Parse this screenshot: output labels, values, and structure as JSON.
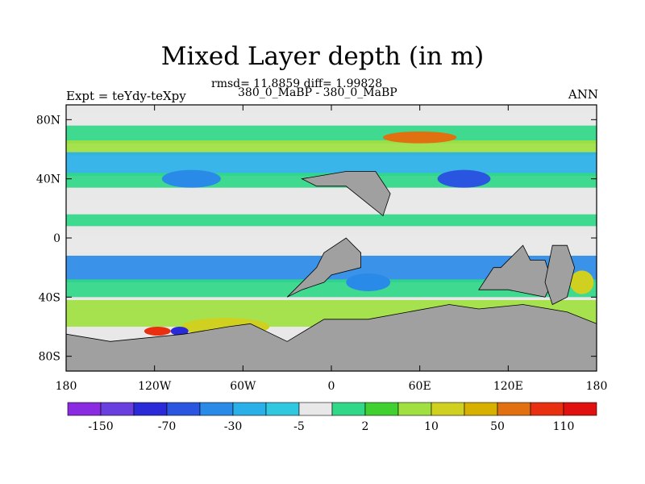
{
  "chart_data": {
    "type": "heatmap",
    "title": "Mixed Layer depth (in m)",
    "stats_text": "rmsd= 11.8859 diff= 1.99828",
    "cases_text": "380_0_MaBP - 380_0_MaBP",
    "left_label": "Expt = teYdy-teXpy",
    "right_label": "ANN",
    "xlim": [
      -180,
      180
    ],
    "ylim": [
      -90,
      90
    ],
    "x_ticks": [
      {
        "value": -180,
        "label": "180"
      },
      {
        "value": -120,
        "label": "120W"
      },
      {
        "value": -60,
        "label": "60W"
      },
      {
        "value": 0,
        "label": "0"
      },
      {
        "value": 60,
        "label": "60E"
      },
      {
        "value": 120,
        "label": "120E"
      },
      {
        "value": 180,
        "label": "180"
      }
    ],
    "y_ticks": [
      {
        "value": 80,
        "label": "80N"
      },
      {
        "value": 40,
        "label": "40N"
      },
      {
        "value": 0,
        "label": "0"
      },
      {
        "value": -40,
        "label": "40S"
      },
      {
        "value": -80,
        "label": "80S"
      }
    ],
    "colorbar": {
      "colors": [
        "#8a2be2",
        "#6a3fe0",
        "#2a2ad8",
        "#2a55e0",
        "#2a8ae8",
        "#2ab0e8",
        "#30c8e0",
        "#e8e8e8",
        "#30d888",
        "#40d030",
        "#a0e040",
        "#d0d020",
        "#d8b000",
        "#e07010",
        "#e83010",
        "#e01010"
      ],
      "labels": [
        {
          "index": 1,
          "label": "-150"
        },
        {
          "index": 3,
          "label": "-70"
        },
        {
          "index": 5,
          "label": "-30"
        },
        {
          "index": 7,
          "label": "-5"
        },
        {
          "index": 9,
          "label": "2"
        },
        {
          "index": 11,
          "label": "10"
        },
        {
          "index": 13,
          "label": "50"
        },
        {
          "index": 15,
          "label": "110"
        }
      ]
    },
    "fields": {
      "land_color": "#a0a0a0",
      "background_color": "#e8e8e8",
      "bands": [
        {
          "lat_min": 76,
          "lat_max": 84,
          "color": "#e8e8e8"
        },
        {
          "lat_min": 64,
          "lat_max": 76,
          "color": "#30d888"
        },
        {
          "lat_min": 56,
          "lat_max": 66,
          "color": "#a0e040"
        },
        {
          "lat_min": 42,
          "lat_max": 58,
          "color": "#2ab0e8"
        },
        {
          "lat_min": 34,
          "lat_max": 44,
          "color": "#30d888"
        },
        {
          "lat_min": 14,
          "lat_max": 26,
          "color": "#e8e8e8"
        },
        {
          "lat_min": 8,
          "lat_max": 16,
          "color": "#30d888"
        },
        {
          "lat_min": -10,
          "lat_max": 2,
          "color": "#e8e8e8"
        },
        {
          "lat_min": -30,
          "lat_max": -12,
          "color": "#2a8ae8"
        },
        {
          "lat_min": -40,
          "lat_max": -28,
          "color": "#30d888"
        },
        {
          "lat_min": -60,
          "lat_max": -42,
          "color": "#a0e040"
        }
      ],
      "patches": [
        {
          "lon": -72,
          "lat": -60,
          "rx": 30,
          "ry": 6,
          "color": "#d0d020"
        },
        {
          "lon": -118,
          "lat": -63,
          "rx": 9,
          "ry": 3,
          "color": "#e83010"
        },
        {
          "lon": -103,
          "lat": -63,
          "rx": 6,
          "ry": 3,
          "color": "#2a2ad8"
        },
        {
          "lon": 60,
          "lat": 68,
          "rx": 25,
          "ry": 4,
          "color": "#e07010"
        },
        {
          "lon": 90,
          "lat": 40,
          "rx": 18,
          "ry": 6,
          "color": "#2a55e0"
        },
        {
          "lon": -95,
          "lat": 40,
          "rx": 20,
          "ry": 6,
          "color": "#2a8ae8"
        },
        {
          "lon": 25,
          "lat": -30,
          "rx": 15,
          "ry": 6,
          "color": "#2a8ae8"
        },
        {
          "lon": 170,
          "lat": -30,
          "rx": 8,
          "ry": 8,
          "color": "#d0d020"
        }
      ],
      "land": [
        [
          [
            -30,
            -40
          ],
          [
            -10,
            -20
          ],
          [
            -5,
            -10
          ],
          [
            10,
            0
          ],
          [
            15,
            -5
          ],
          [
            20,
            -10
          ],
          [
            20,
            -20
          ],
          [
            0,
            -25
          ],
          [
            -5,
            -30
          ],
          [
            -20,
            -35
          ]
        ],
        [
          [
            100,
            -35
          ],
          [
            110,
            -20
          ],
          [
            115,
            -20
          ],
          [
            130,
            -5
          ],
          [
            135,
            -15
          ],
          [
            145,
            -15
          ],
          [
            150,
            -30
          ],
          [
            145,
            -40
          ],
          [
            120,
            -35
          ]
        ],
        [
          [
            150,
            -5
          ],
          [
            160,
            -5
          ],
          [
            165,
            -20
          ],
          [
            160,
            -40
          ],
          [
            150,
            -45
          ],
          [
            145,
            -30
          ]
        ],
        [
          [
            -20,
            40
          ],
          [
            10,
            45
          ],
          [
            30,
            45
          ],
          [
            40,
            30
          ],
          [
            35,
            15
          ],
          [
            10,
            35
          ],
          [
            -10,
            35
          ]
        ],
        [
          [
            -30,
            -70
          ],
          [
            -5,
            -55
          ],
          [
            25,
            -55
          ],
          [
            80,
            -45
          ],
          [
            100,
            -48
          ],
          [
            130,
            -45
          ],
          [
            160,
            -50
          ],
          [
            180,
            -58
          ],
          [
            180,
            -90
          ],
          [
            -180,
            -90
          ],
          [
            -180,
            -65
          ],
          [
            -150,
            -70
          ],
          [
            -100,
            -65
          ],
          [
            -70,
            -60
          ],
          [
            -55,
            -58
          ]
        ]
      ]
    }
  }
}
